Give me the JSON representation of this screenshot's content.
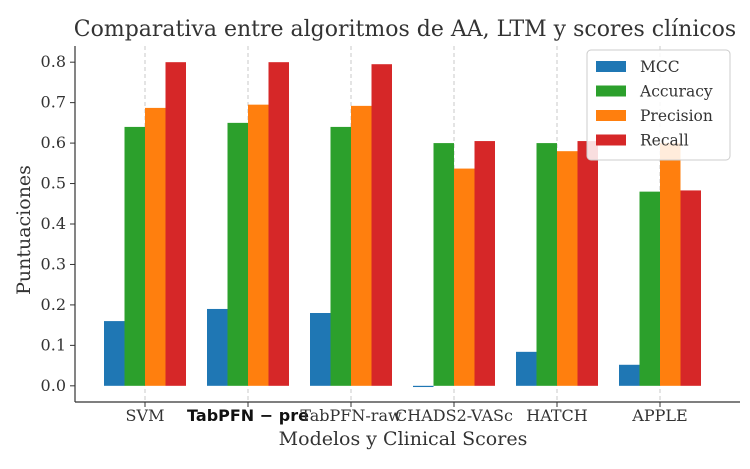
{
  "chart_data": {
    "type": "bar",
    "title": "Comparativa entre algoritmos de AA, LTM y scores clínicos",
    "xlabel": "Modelos y Clinical Scores",
    "ylabel": "Puntuaciones",
    "categories": [
      "SVM",
      "TabPFN − pre",
      "TabPFN-raw",
      "CHADS2-VASc",
      "HATCH",
      "APPLE"
    ],
    "ylim": [
      -0.04,
      0.84
    ],
    "yticks": [
      "0.0",
      "0.1",
      "0.2",
      "0.3",
      "0.4",
      "0.5",
      "0.6",
      "0.7",
      "0.8"
    ],
    "grid": "vertical dashed",
    "legend_position": "top-right",
    "series": [
      {
        "name": "MCC",
        "color": "#1f77b4",
        "values": [
          0.16,
          0.19,
          0.18,
          -0.003,
          0.084,
          0.052
        ]
      },
      {
        "name": "Accuracy",
        "color": "#2ca02c",
        "values": [
          0.64,
          0.65,
          0.64,
          0.6,
          0.6,
          0.48
        ]
      },
      {
        "name": "Precision",
        "color": "#ff7f0e",
        "values": [
          0.687,
          0.695,
          0.692,
          0.537,
          0.58,
          0.6
        ]
      },
      {
        "name": "Recall",
        "color": "#d62728",
        "values": [
          0.8,
          0.8,
          0.795,
          0.605,
          0.605,
          0.483
        ]
      }
    ]
  }
}
